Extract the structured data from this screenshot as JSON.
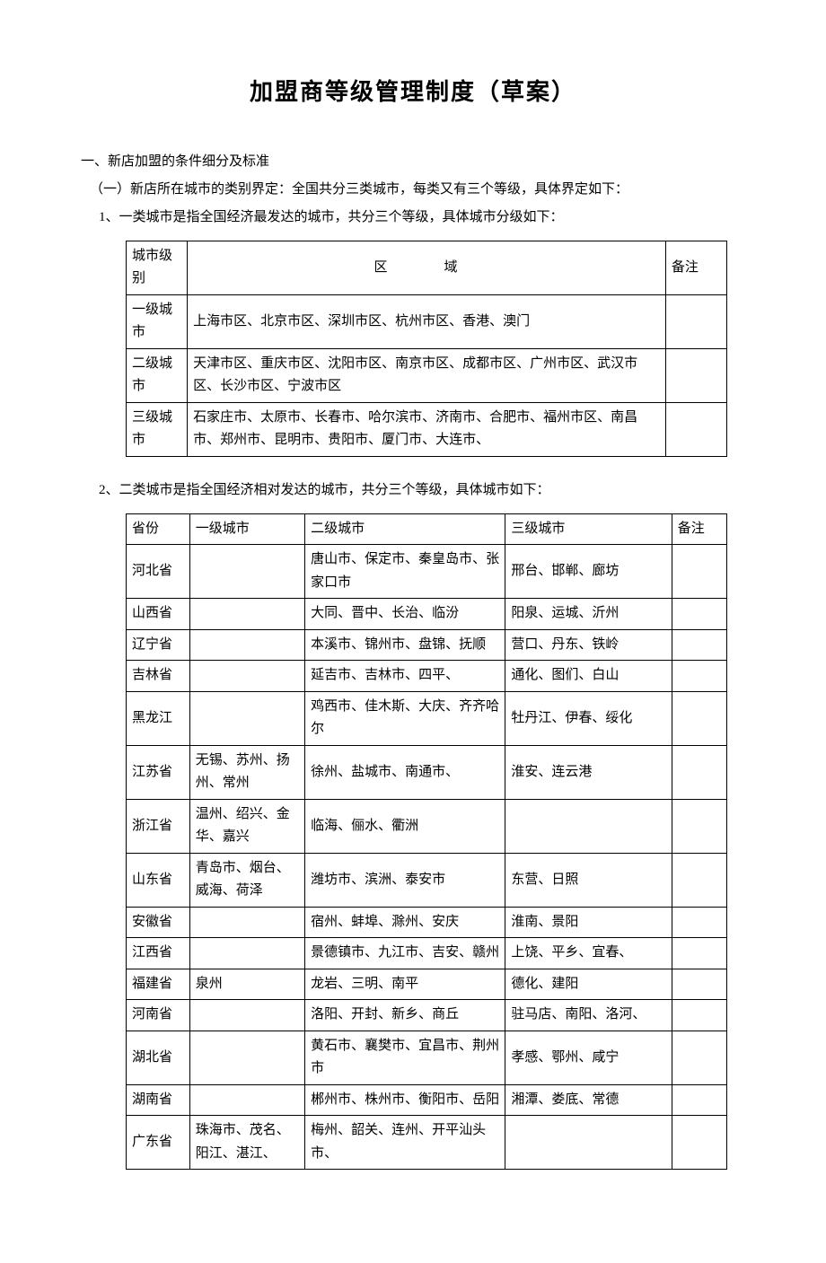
{
  "title": "加盟商等级管理制度（草案）",
  "heading1": "一、新店加盟的条件细分及标准",
  "heading2": "（一）新店所在城市的类别界定：全国共分三类城市，每类又有三个等级，具体界定如下：",
  "heading3_1": "1、一类城市是指全国经济最发达的城市，共分三个等级，具体城市分级如下：",
  "heading3_2": "2、二类城市是指全国经济相对发达的城市，共分三个等级，具体城市如下：",
  "table1": {
    "headers": {
      "level": "城市级别",
      "region": "区　域",
      "note": "备注"
    },
    "rows": [
      {
        "level": "一级城市",
        "region": "上海市区、北京市区、深圳市区、杭州市区、香港、澳门",
        "note": ""
      },
      {
        "level": "二级城市",
        "region": "天津市区、重庆市区、沈阳市区、南京市区、成都市区、广州市区、武汉市区、长沙市区、宁波市区",
        "note": ""
      },
      {
        "level": "三级城市",
        "region": "石家庄市、太原市、长春市、哈尔滨市、济南市、合肥市、福州市区、南昌市、郑州市、昆明市、贵阳市、厦门市、大连市、",
        "note": ""
      }
    ]
  },
  "table2": {
    "headers": {
      "prov": "省份",
      "l1": "一级城市",
      "l2": "二级城市",
      "l3": "三级城市",
      "note": "备注"
    },
    "rows": [
      {
        "prov": "河北省",
        "l1": "",
        "l2": "唐山市、保定市、秦皇岛市、张家口市",
        "l3": "邢台、邯郸、廊坊",
        "note": ""
      },
      {
        "prov": "山西省",
        "l1": "",
        "l2": "大同、晋中、长治、临汾",
        "l3": "阳泉、运城、沂州",
        "note": ""
      },
      {
        "prov": "辽宁省",
        "l1": "",
        "l2": "本溪市、锦州市、盘锦、抚顺",
        "l3": "营口、丹东、铁岭",
        "note": ""
      },
      {
        "prov": "吉林省",
        "l1": "",
        "l2": "延吉市、吉林市、四平、",
        "l3": "通化、图们、白山",
        "note": ""
      },
      {
        "prov": "黑龙江",
        "l1": "",
        "l2": "鸡西市、佳木斯、大庆、齐齐哈尔",
        "l3": "牡丹江、伊春、绥化",
        "note": ""
      },
      {
        "prov": "江苏省",
        "l1": "无锡、苏州、扬州、常州",
        "l2": "徐州、盐城市、南通市、",
        "l3": "淮安、连云港",
        "note": ""
      },
      {
        "prov": "浙江省",
        "l1": "温州、绍兴、金华、嘉兴",
        "l2": "临海、俪水、衢洲",
        "l3": "",
        "note": ""
      },
      {
        "prov": "山东省",
        "l1": "青岛市、烟台、威海、荷泽",
        "l2": "潍坊市、滨洲、泰安市",
        "l3": "东营、日照",
        "note": ""
      },
      {
        "prov": "安徽省",
        "l1": "",
        "l2": "宿州、蚌埠、滁州、安庆",
        "l3": "淮南、景阳",
        "note": ""
      },
      {
        "prov": "江西省",
        "l1": "",
        "l2": "景德镇市、九江市、吉安、赣州",
        "l3": "上饶、平乡、宜春、",
        "note": ""
      },
      {
        "prov": "福建省",
        "l1": "泉州",
        "l2": "龙岩、三明、南平",
        "l3": "德化、建阳",
        "note": ""
      },
      {
        "prov": "河南省",
        "l1": "",
        "l2": "洛阳、开封、新乡、商丘",
        "l3": "驻马店、南阳、洛河、",
        "note": ""
      },
      {
        "prov": "湖北省",
        "l1": "",
        "l2": "黄石市、襄樊市、宜昌市、荆州市",
        "l3": "孝感、鄂州、咸宁",
        "note": ""
      },
      {
        "prov": "湖南省",
        "l1": "",
        "l2": "郴州市、株州市、衡阳市、岳阳",
        "l3": "湘潭、娄底、常德",
        "note": ""
      },
      {
        "prov": "广东省",
        "l1": "珠海市、茂名、阳江、湛江、",
        "l2": "梅州、韶关、连州、开平汕头市、",
        "l3": "",
        "note": ""
      }
    ]
  }
}
